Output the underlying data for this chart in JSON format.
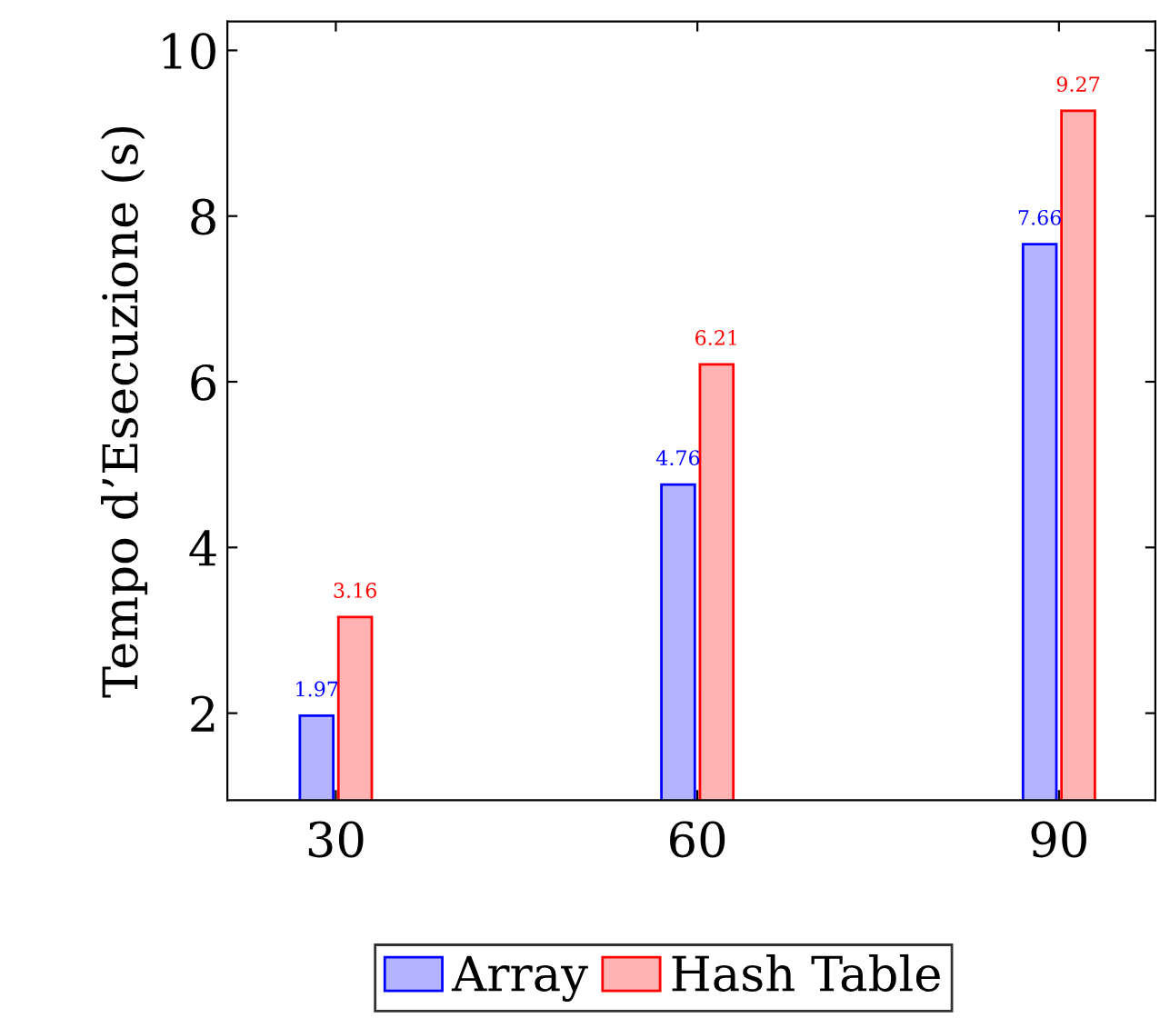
{
  "chart_data": {
    "type": "bar",
    "ylabel": "Tempo d’Esecuzione (s)",
    "x": [
      30,
      60,
      90
    ],
    "xlim": [
      21,
      98
    ],
    "xticks": [
      30,
      60,
      90
    ],
    "ylim": [
      0.95,
      10.35
    ],
    "yticks": [
      2,
      4,
      6,
      8,
      10
    ],
    "series": [
      {
        "name": "Array",
        "color": "#b3b3ff",
        "values": [
          1.97,
          4.76,
          7.66
        ]
      },
      {
        "name": "Hash Table",
        "color": "#ffb3b3",
        "values": [
          3.16,
          6.21,
          9.27
        ]
      }
    ],
    "data_labels": true,
    "grid": false,
    "legend": "bottom"
  }
}
